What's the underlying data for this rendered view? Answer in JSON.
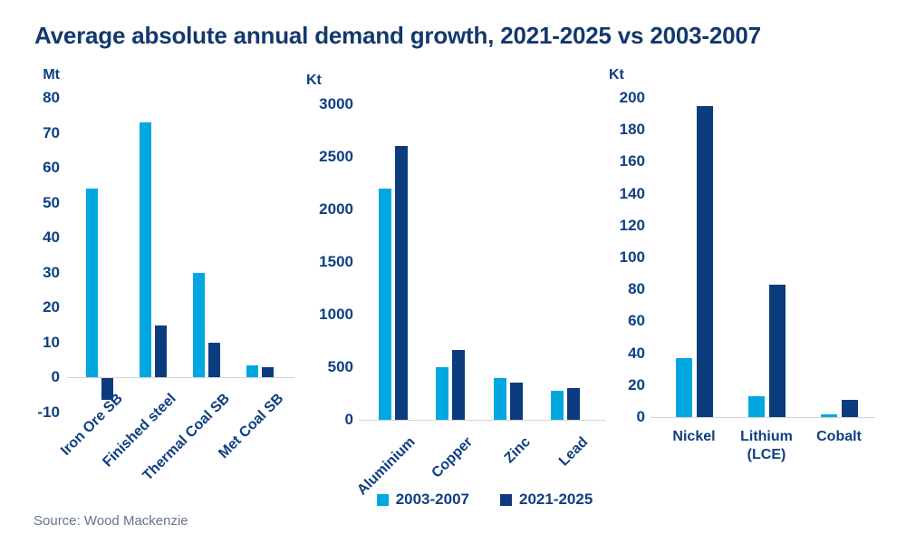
{
  "title": "Average absolute annual demand growth, 2021-2025 vs 2003-2007",
  "source": "Source: Wood Mackenzie",
  "colors": {
    "series_2003_2007": "#00A7E1",
    "series_2021_2025": "#0C3C7D",
    "title_text": "#14386E",
    "axis_text": "#0F3F82",
    "source_text": "#66738F",
    "baseline": "#D4D4D4"
  },
  "legend": {
    "items": [
      {
        "label": "2003-2007",
        "color": "#00A7E1"
      },
      {
        "label": "2021-2025",
        "color": "#0C3C7D"
      }
    ],
    "position": "bottom-center"
  },
  "chart_data": [
    {
      "type": "bar",
      "unit": "Mt",
      "categories": [
        "Iron Ore SB",
        "Finished steel",
        "Thermal Coal SB",
        "Met Coal SB"
      ],
      "series": [
        {
          "name": "2003-2007",
          "values": [
            54,
            73,
            30,
            3.5
          ]
        },
        {
          "name": "2021-2025",
          "values": [
            -6,
            15,
            10,
            3
          ]
        }
      ],
      "ylim": [
        -10,
        80
      ],
      "yticks": [
        80,
        70,
        60,
        50,
        40,
        30,
        20,
        10,
        0,
        -10
      ],
      "label_rotation": 45,
      "grid": false
    },
    {
      "type": "bar",
      "unit": "Kt",
      "categories": [
        "Aluminium",
        "Copper",
        "Zinc",
        "Lead"
      ],
      "series": [
        {
          "name": "2003-2007",
          "values": [
            2200,
            500,
            400,
            280
          ]
        },
        {
          "name": "2021-2025",
          "values": [
            2600,
            660,
            350,
            300
          ]
        }
      ],
      "ylim": [
        0,
        3000
      ],
      "yticks": [
        3000,
        2500,
        2000,
        1500,
        1000,
        500,
        0
      ],
      "label_rotation": 45,
      "grid": false
    },
    {
      "type": "bar",
      "unit": "Kt",
      "categories": [
        "Nickel",
        "Lithium\n(LCE)",
        "Cobalt"
      ],
      "series": [
        {
          "name": "2003-2007",
          "values": [
            37,
            13,
            1.5
          ]
        },
        {
          "name": "2021-2025",
          "values": [
            195,
            83,
            11
          ]
        }
      ],
      "ylim": [
        0,
        200
      ],
      "yticks": [
        200,
        180,
        160,
        140,
        120,
        100,
        80,
        60,
        40,
        20,
        0
      ],
      "label_rotation": 0,
      "grid": false
    }
  ]
}
